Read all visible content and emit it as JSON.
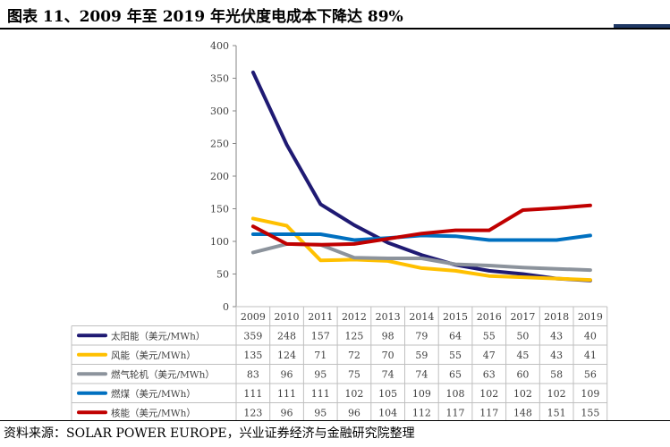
{
  "title": "图表 11、2009 年至 2019 年光伏度电成本下降达 89%",
  "source": "资料来源：SOLAR POWER EUROPE，兴业证券经济与金融研究院整理",
  "chart_data": {
    "type": "line",
    "title": "图表 11、2009 年至 2019 年光伏度电成本下降达 89%",
    "xlabel": "",
    "ylabel": "",
    "ylim": [
      0,
      400
    ],
    "yticks": [
      0,
      50,
      100,
      150,
      200,
      250,
      300,
      350,
      400
    ],
    "grid": false,
    "legend": "data-table-below",
    "categories": [
      "2009",
      "2010",
      "2011",
      "2012",
      "2013",
      "2014",
      "2015",
      "2016",
      "2017",
      "2018",
      "2019"
    ],
    "series": [
      {
        "name": "太阳能（美元/MWh）",
        "color": "#1f1a73",
        "values": [
          359,
          248,
          157,
          125,
          98,
          79,
          64,
          55,
          50,
          43,
          40
        ]
      },
      {
        "name": "风能（美元/MWh）",
        "color": "#ffc000",
        "values": [
          135,
          124,
          71,
          72,
          70,
          59,
          55,
          47,
          45,
          43,
          41
        ]
      },
      {
        "name": "燃气轮机（美元/MWh）",
        "color": "#8c939c",
        "values": [
          83,
          96,
          95,
          75,
          74,
          74,
          65,
          63,
          60,
          58,
          56
        ]
      },
      {
        "name": "燃煤（美元/MWh）",
        "color": "#0070c0",
        "values": [
          111,
          111,
          111,
          102,
          105,
          109,
          108,
          102,
          102,
          102,
          109
        ]
      },
      {
        "name": "核能（美元/MWh）",
        "color": "#c00000",
        "values": [
          123,
          96,
          95,
          96,
          104,
          112,
          117,
          117,
          148,
          151,
          155
        ]
      }
    ]
  }
}
